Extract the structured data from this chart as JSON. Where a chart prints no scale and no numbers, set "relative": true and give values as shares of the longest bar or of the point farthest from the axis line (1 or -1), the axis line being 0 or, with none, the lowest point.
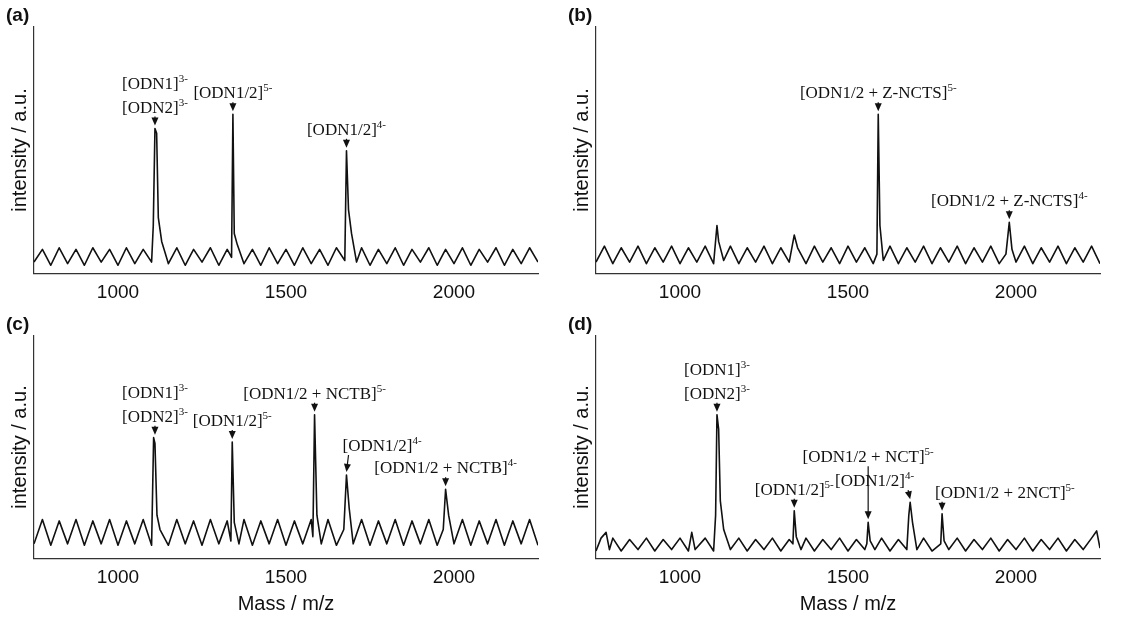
{
  "chart_data": [
    {
      "type": "line",
      "title": "(a)",
      "ylabel": "intensity / a.u.",
      "relative": true,
      "xlim": [
        750,
        2250
      ],
      "xticks": [
        1000,
        1500,
        2000
      ],
      "grid": false,
      "legend": false,
      "marker": "none",
      "series": [
        {
          "color": "#111111",
          "x": [
            750,
            775,
            800,
            825,
            850,
            875,
            900,
            925,
            950,
            975,
            1000,
            1025,
            1050,
            1075,
            1100,
            1105,
            1110,
            1115,
            1120,
            1130,
            1150,
            1175,
            1200,
            1225,
            1250,
            1275,
            1300,
            1325,
            1338,
            1342,
            1346,
            1355,
            1375,
            1400,
            1425,
            1450,
            1475,
            1500,
            1525,
            1550,
            1575,
            1600,
            1625,
            1650,
            1675,
            1680,
            1686,
            1695,
            1710,
            1725,
            1750,
            1775,
            1800,
            1825,
            1850,
            1875,
            1900,
            1925,
            1950,
            1975,
            2000,
            2025,
            2050,
            2075,
            2100,
            2125,
            2150,
            2175,
            2200,
            2225,
            2250
          ],
          "values": [
            0.07,
            0.15,
            0.05,
            0.16,
            0.06,
            0.15,
            0.05,
            0.16,
            0.07,
            0.15,
            0.05,
            0.16,
            0.06,
            0.15,
            0.07,
            0.3,
            0.91,
            0.88,
            0.35,
            0.2,
            0.06,
            0.16,
            0.05,
            0.15,
            0.07,
            0.16,
            0.05,
            0.15,
            0.1,
            1.0,
            0.25,
            0.18,
            0.06,
            0.15,
            0.05,
            0.16,
            0.06,
            0.15,
            0.05,
            0.16,
            0.06,
            0.15,
            0.05,
            0.16,
            0.08,
            0.77,
            0.4,
            0.25,
            0.07,
            0.16,
            0.05,
            0.15,
            0.06,
            0.16,
            0.05,
            0.15,
            0.07,
            0.16,
            0.05,
            0.15,
            0.06,
            0.16,
            0.05,
            0.15,
            0.07,
            0.16,
            0.05,
            0.15,
            0.06,
            0.16,
            0.07
          ]
        }
      ],
      "annotations": [
        {
          "text": "[ODN1]$^{3-}$",
          "x": 1110,
          "y": 0.91
        },
        {
          "text": "[ODN2]$^{3-}$",
          "x": 1110,
          "y": 0.91
        },
        {
          "text": "[ODN1/2]$^{5-}$",
          "x": 1342,
          "y": 1.0
        },
        {
          "text": "[ODN1/2]$^{4-}$",
          "x": 1680,
          "y": 0.77
        }
      ]
    },
    {
      "type": "line",
      "title": "(b)",
      "ylabel": "intensity / a.u.",
      "relative": true,
      "xlim": [
        750,
        2250
      ],
      "xticks": [
        1000,
        1500,
        2000
      ],
      "grid": false,
      "legend": false,
      "marker": "none",
      "series": [
        {
          "color": "#111111",
          "x": [
            750,
            775,
            800,
            825,
            850,
            875,
            900,
            925,
            950,
            975,
            1000,
            1025,
            1050,
            1075,
            1100,
            1110,
            1115,
            1130,
            1150,
            1175,
            1200,
            1225,
            1250,
            1275,
            1300,
            1325,
            1340,
            1350,
            1375,
            1400,
            1425,
            1450,
            1475,
            1500,
            1525,
            1550,
            1575,
            1586,
            1590,
            1595,
            1605,
            1625,
            1650,
            1675,
            1700,
            1725,
            1750,
            1775,
            1800,
            1825,
            1850,
            1875,
            1900,
            1925,
            1950,
            1970,
            1980,
            1988,
            2000,
            2025,
            2050,
            2075,
            2100,
            2125,
            2150,
            2175,
            2200,
            2225,
            2250
          ],
          "values": [
            0.07,
            0.17,
            0.06,
            0.16,
            0.07,
            0.17,
            0.06,
            0.16,
            0.07,
            0.17,
            0.06,
            0.16,
            0.07,
            0.17,
            0.06,
            0.3,
            0.2,
            0.08,
            0.17,
            0.06,
            0.16,
            0.07,
            0.17,
            0.06,
            0.16,
            0.07,
            0.24,
            0.16,
            0.06,
            0.17,
            0.07,
            0.16,
            0.06,
            0.17,
            0.07,
            0.16,
            0.06,
            0.12,
            1.0,
            0.3,
            0.08,
            0.17,
            0.06,
            0.16,
            0.07,
            0.17,
            0.06,
            0.16,
            0.07,
            0.17,
            0.06,
            0.16,
            0.07,
            0.17,
            0.06,
            0.12,
            0.32,
            0.15,
            0.07,
            0.17,
            0.06,
            0.16,
            0.07,
            0.17,
            0.06,
            0.16,
            0.07,
            0.17,
            0.06
          ]
        }
      ],
      "annotations": [
        {
          "text": "[ODN1/2 + Z-NCTS]$^{5-}$",
          "x": 1590,
          "y": 1.0
        },
        {
          "text": "[ODN1/2 + Z-NCTS]$^{4-}$",
          "x": 1980,
          "y": 0.32
        }
      ]
    },
    {
      "type": "line",
      "title": "(c)",
      "xlabel": "Mass / m/z",
      "ylabel": "intensity / a.u.",
      "relative": true,
      "xlim": [
        750,
        2250
      ],
      "xticks": [
        1000,
        1500,
        2000
      ],
      "grid": false,
      "legend": false,
      "marker": "none",
      "series": [
        {
          "color": "#111111",
          "x": [
            750,
            775,
            800,
            825,
            850,
            875,
            900,
            925,
            950,
            975,
            1000,
            1025,
            1050,
            1075,
            1100,
            1106,
            1110,
            1116,
            1125,
            1150,
            1175,
            1200,
            1225,
            1250,
            1275,
            1300,
            1325,
            1336,
            1340,
            1346,
            1360,
            1375,
            1400,
            1425,
            1450,
            1475,
            1500,
            1525,
            1550,
            1575,
            1580,
            1585,
            1592,
            1605,
            1625,
            1650,
            1672,
            1680,
            1688,
            1700,
            1725,
            1750,
            1775,
            1800,
            1825,
            1850,
            1875,
            1900,
            1925,
            1950,
            1968,
            1975,
            1984,
            2000,
            2025,
            2050,
            2075,
            2100,
            2125,
            2150,
            2175,
            2200,
            2225,
            2250
          ],
          "values": [
            0.1,
            0.27,
            0.09,
            0.26,
            0.1,
            0.27,
            0.09,
            0.26,
            0.1,
            0.27,
            0.09,
            0.26,
            0.1,
            0.27,
            0.09,
            0.84,
            0.8,
            0.3,
            0.2,
            0.09,
            0.27,
            0.1,
            0.26,
            0.09,
            0.27,
            0.1,
            0.26,
            0.12,
            0.81,
            0.25,
            0.1,
            0.27,
            0.09,
            0.26,
            0.1,
            0.27,
            0.09,
            0.26,
            0.1,
            0.27,
            0.15,
            1.0,
            0.3,
            0.1,
            0.27,
            0.09,
            0.2,
            0.58,
            0.35,
            0.1,
            0.27,
            0.09,
            0.26,
            0.1,
            0.27,
            0.09,
            0.26,
            0.1,
            0.27,
            0.09,
            0.2,
            0.48,
            0.3,
            0.1,
            0.27,
            0.09,
            0.26,
            0.1,
            0.27,
            0.09,
            0.26,
            0.1,
            0.27,
            0.09
          ]
        }
      ],
      "annotations": [
        {
          "text": "[ODN1]$^{3-}$",
          "x": 1110,
          "y": 0.84
        },
        {
          "text": "[ODN2]$^{3-}$",
          "x": 1110,
          "y": 0.84
        },
        {
          "text": "[ODN1/2]$^{5-}$",
          "x": 1340,
          "y": 0.81
        },
        {
          "text": "[ODN1/2 + NCTB]$^{5-}$",
          "x": 1585,
          "y": 1.0
        },
        {
          "text": "[ODN1/2]$^{4-}$",
          "x": 1680,
          "y": 0.58
        },
        {
          "text": "[ODN1/2 + NCTB]$^{4-}$",
          "x": 1975,
          "y": 0.48
        }
      ]
    },
    {
      "type": "line",
      "title": "(d)",
      "xlabel": "Mass / m/z",
      "ylabel": "intensity / a.u.",
      "relative": true,
      "xlim": [
        750,
        2250
      ],
      "xticks": [
        1000,
        1500,
        2000
      ],
      "grid": false,
      "legend": false,
      "marker": "none",
      "series": [
        {
          "color": "#111111",
          "x": [
            750,
            765,
            780,
            790,
            800,
            825,
            850,
            875,
            900,
            925,
            950,
            975,
            1000,
            1025,
            1035,
            1045,
            1075,
            1100,
            1106,
            1110,
            1115,
            1120,
            1130,
            1150,
            1175,
            1200,
            1225,
            1250,
            1275,
            1300,
            1325,
            1336,
            1340,
            1346,
            1360,
            1375,
            1400,
            1425,
            1450,
            1475,
            1500,
            1525,
            1550,
            1556,
            1560,
            1566,
            1580,
            1600,
            1625,
            1650,
            1675,
            1681,
            1685,
            1692,
            1705,
            1725,
            1750,
            1776,
            1780,
            1786,
            1800,
            1825,
            1850,
            1875,
            1900,
            1925,
            1950,
            1975,
            2000,
            2025,
            2050,
            2075,
            2100,
            2125,
            2150,
            2175,
            2200,
            2225,
            2240,
            2250
          ],
          "values": [
            0.05,
            0.14,
            0.18,
            0.06,
            0.14,
            0.05,
            0.13,
            0.06,
            0.14,
            0.05,
            0.13,
            0.06,
            0.14,
            0.05,
            0.18,
            0.06,
            0.14,
            0.05,
            0.3,
            1.0,
            0.9,
            0.4,
            0.2,
            0.06,
            0.14,
            0.05,
            0.13,
            0.06,
            0.14,
            0.05,
            0.13,
            0.1,
            0.33,
            0.15,
            0.06,
            0.14,
            0.05,
            0.13,
            0.06,
            0.14,
            0.05,
            0.13,
            0.06,
            0.1,
            0.25,
            0.12,
            0.06,
            0.14,
            0.05,
            0.13,
            0.06,
            0.3,
            0.39,
            0.25,
            0.06,
            0.14,
            0.05,
            0.1,
            0.31,
            0.12,
            0.06,
            0.14,
            0.05,
            0.13,
            0.06,
            0.14,
            0.05,
            0.13,
            0.06,
            0.14,
            0.05,
            0.13,
            0.06,
            0.14,
            0.05,
            0.13,
            0.06,
            0.14,
            0.19,
            0.07
          ]
        }
      ],
      "annotations": [
        {
          "text": "[ODN1]$^{3-}$",
          "x": 1110,
          "y": 1.0
        },
        {
          "text": "[ODN2]$^{3-}$",
          "x": 1110,
          "y": 1.0
        },
        {
          "text": "[ODN1/2]$^{5-}$",
          "x": 1340,
          "y": 0.33
        },
        {
          "text": "[ODN1/2 + NCT]$^{5-}$",
          "x": 1560,
          "y": 0.25
        },
        {
          "text": "[ODN1/2]$^{4-}$",
          "x": 1685,
          "y": 0.39
        },
        {
          "text": "[ODN1/2 + 2NCT]$^{5-}$",
          "x": 1780,
          "y": 0.31
        }
      ]
    }
  ]
}
